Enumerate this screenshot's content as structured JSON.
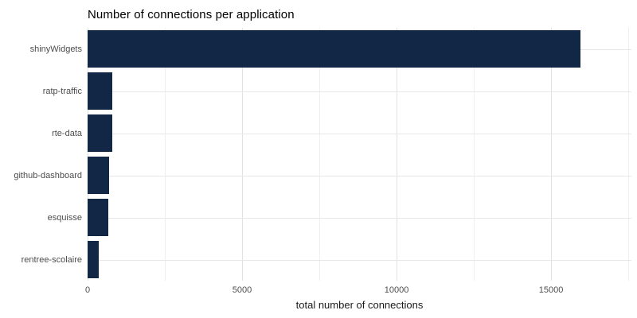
{
  "chart_data": {
    "type": "bar",
    "orientation": "horizontal",
    "title": "Number of connections per application",
    "xlabel": "total number of connections",
    "ylabel": "",
    "categories": [
      "shinyWidgets",
      "ratp-traffic",
      "rte-data",
      "github-dashboard",
      "esquisse",
      "rentree-scolaire"
    ],
    "values": [
      15950,
      810,
      790,
      690,
      660,
      370
    ],
    "xlim": [
      0,
      17600
    ],
    "x_major_ticks": [
      0,
      5000,
      10000,
      15000
    ],
    "x_tick_labels": [
      "0",
      "5000",
      "10000",
      "15000"
    ],
    "x_minor_ticks": [
      2500,
      7500,
      12500,
      17500
    ],
    "grid": "vertical major+minor, horizontal major at category centers",
    "legend_position": "none",
    "bar_width_fraction": 0.9,
    "colors": {
      "bar": "#122645",
      "background": "#ffffff",
      "grid_major": "#e2e2e2",
      "grid_minor": "#efefef",
      "axis_text": "#4d4d4d",
      "title_text": "#000000",
      "axis_title_text": "#1a1a1a"
    }
  }
}
